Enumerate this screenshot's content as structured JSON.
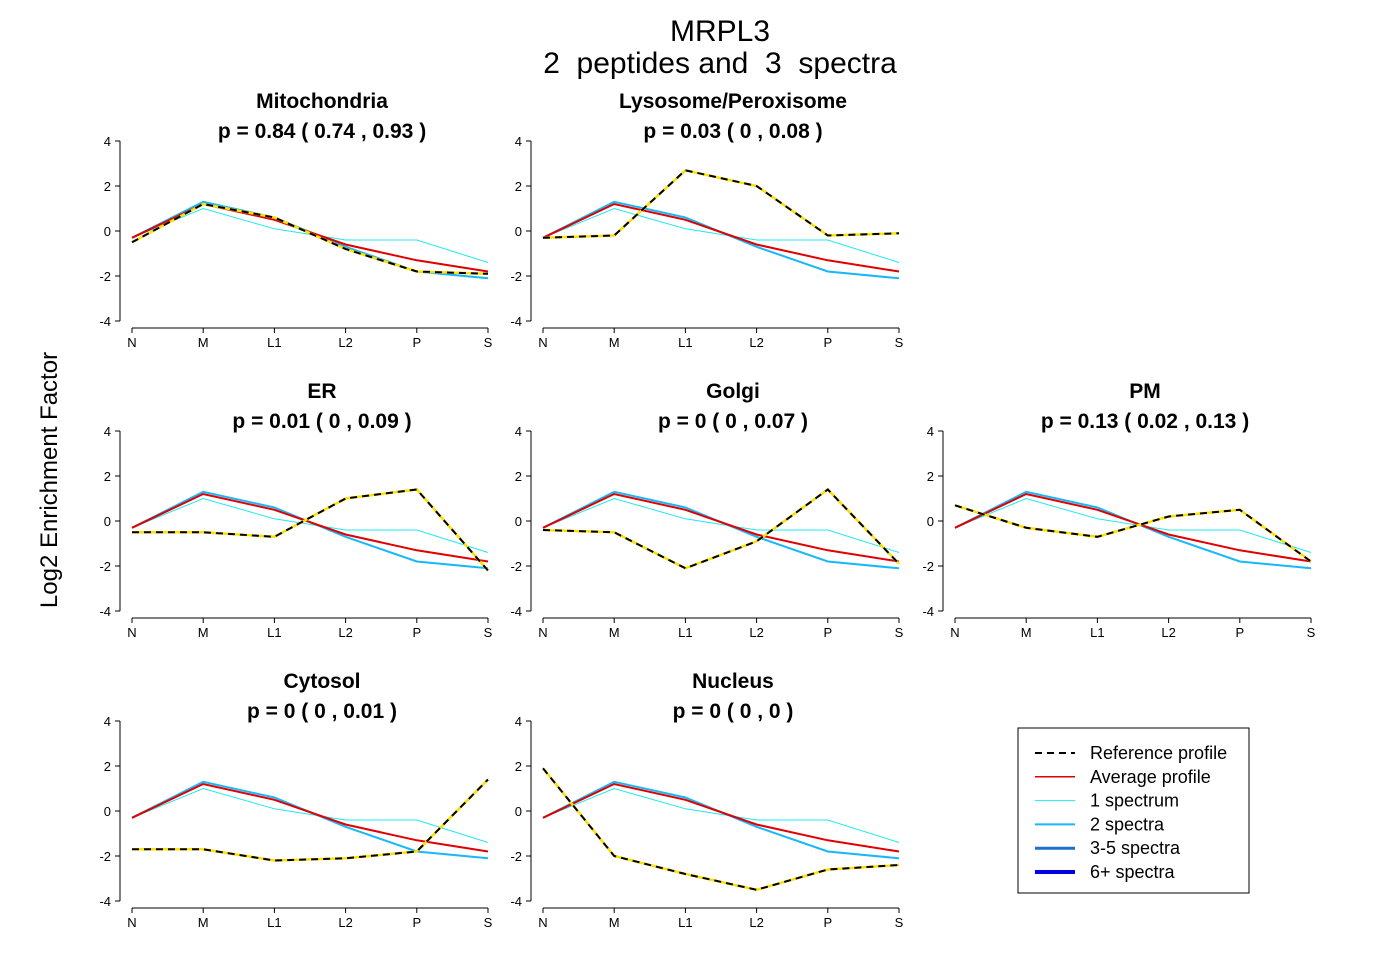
{
  "title_line1": "MRPL3",
  "title_line2": "2  peptides and  3  spectra",
  "ylabel": "Log2 Enrichment Factor",
  "colors": {
    "reference": "#000000",
    "reference_highlight": "#FFE000",
    "average": "#E00000",
    "one_spectrum": "#20E8F0",
    "two_spectra": "#18B8F8",
    "three_five_spectra": "#1E6FD0",
    "six_plus_spectra": "#0000E0"
  },
  "legend": [
    {
      "key": "reference",
      "label": "Reference profile"
    },
    {
      "key": "average",
      "label": "Average profile"
    },
    {
      "key": "one_spectrum",
      "label": "1 spectrum"
    },
    {
      "key": "two_spectra",
      "label": "2 spectra"
    },
    {
      "key": "three_five_spectra",
      "label": "3-5 spectra"
    },
    {
      "key": "six_plus_spectra",
      "label": "6+ spectra"
    }
  ],
  "chart_data": {
    "type": "line",
    "categories": [
      "N",
      "M",
      "L1",
      "L2",
      "P",
      "S"
    ],
    "ylim": [
      -4,
      4
    ],
    "yticks": [
      -4,
      -2,
      0,
      2,
      4
    ],
    "shared_series": [
      {
        "name": "Average profile",
        "key": "average",
        "values": [
          -0.3,
          1.2,
          0.5,
          -0.6,
          -1.3,
          -1.8
        ]
      },
      {
        "name": "1 spectrum",
        "key": "one_spectrum",
        "values": [
          -0.3,
          1.0,
          0.1,
          -0.4,
          -0.4,
          -1.4
        ]
      },
      {
        "name": "2 spectra",
        "key": "two_spectra",
        "values": [
          -0.3,
          1.3,
          0.6,
          -0.7,
          -1.8,
          -2.1
        ]
      }
    ],
    "panels": [
      {
        "name": "Mitochondria",
        "p_text": "p =  0.84  ( 0.74 ,  0.93 )",
        "reference": [
          -0.5,
          1.2,
          0.6,
          -0.8,
          -1.8,
          -1.9
        ]
      },
      {
        "name": "Lysosome/Peroxisome",
        "p_text": "p =  0.03  ( 0 ,  0.08 )",
        "reference": [
          -0.3,
          -0.2,
          2.7,
          2.0,
          -0.2,
          -0.1
        ]
      },
      {
        "name": "ER",
        "p_text": "p =  0.01  ( 0 ,  0.09 )",
        "reference": [
          -0.5,
          -0.5,
          -0.7,
          1.0,
          1.4,
          -2.2
        ]
      },
      {
        "name": "Golgi",
        "p_text": "p =  0  ( 0 ,  0.07 )",
        "reference": [
          -0.4,
          -0.5,
          -2.1,
          -0.9,
          1.4,
          -1.9
        ]
      },
      {
        "name": "PM",
        "p_text": "p =  0.13  ( 0.02 ,  0.13 )",
        "reference": [
          0.7,
          -0.3,
          -0.7,
          0.2,
          0.5,
          -1.8
        ]
      },
      {
        "name": "Cytosol",
        "p_text": "p =  0  ( 0 ,  0.01 )",
        "reference": [
          -1.7,
          -1.7,
          -2.2,
          -2.1,
          -1.8,
          1.4
        ]
      },
      {
        "name": "Nucleus",
        "p_text": "p =  0  ( 0 ,  0 )",
        "reference": [
          1.9,
          -2.0,
          -2.8,
          -3.5,
          -2.6,
          -2.4
        ]
      }
    ]
  }
}
